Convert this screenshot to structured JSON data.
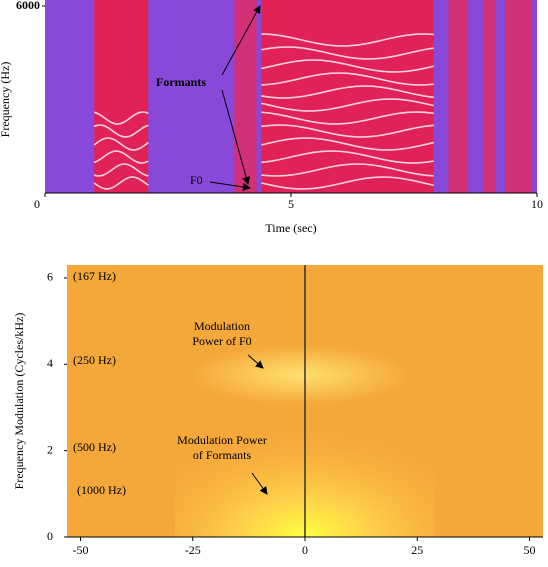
{
  "chart_data": [
    {
      "type": "spectrogram",
      "x_label": "Time (sec)",
      "y_label": "Frequency (Hz)",
      "xlim": [
        0,
        10
      ],
      "xticks": [
        0,
        5,
        10
      ],
      "ylim": [
        0,
        6000
      ],
      "yticks": [
        6000
      ],
      "annotations": [
        "Formants",
        "F0"
      ]
    },
    {
      "type": "modulation-spectrum",
      "y_label": "Frequency Modulation (Cycles/kHz)",
      "xlim": [
        -53,
        53
      ],
      "xticks": [
        -50,
        -25,
        0,
        25,
        50
      ],
      "ylim": [
        0,
        6.3
      ],
      "yticks": [
        0,
        2,
        4,
        6
      ],
      "y_annotations": [
        "(167 Hz)",
        "(250 Hz)",
        "(500 Hz)",
        "(1000 Hz)"
      ],
      "annotations": [
        {
          "lines": [
            "Modulation",
            "Power of F0"
          ]
        },
        {
          "lines": [
            "Modulation Power",
            "of Formants"
          ]
        }
      ]
    }
  ]
}
